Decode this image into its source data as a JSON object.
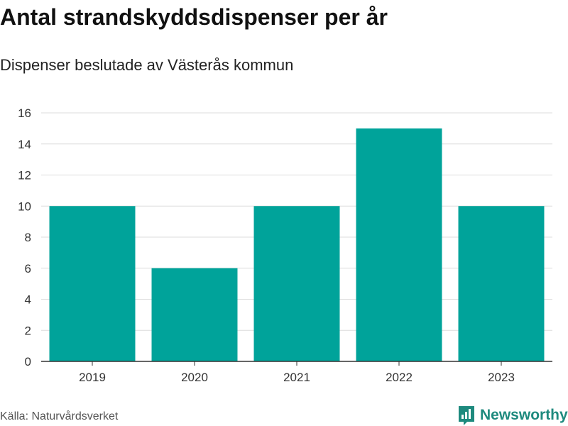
{
  "chart_data": {
    "type": "bar",
    "title": "Antal strandskyddsdispenser per år",
    "subtitle": "Dispenser beslutade av Västerås kommun",
    "categories": [
      "2019",
      "2020",
      "2021",
      "2022",
      "2023"
    ],
    "values": [
      10,
      6,
      10,
      15,
      10
    ],
    "xlabel": "",
    "ylabel": "",
    "ylim": [
      0,
      16
    ],
    "yticks": [
      0,
      2,
      4,
      6,
      8,
      10,
      12,
      14,
      16
    ],
    "grid": true,
    "bar_color": "#00a39a"
  },
  "source": "Källa: Naturvårdsverket",
  "brand": {
    "name": "Newsworthy",
    "color": "#1e8a7e",
    "icon": "newsworthy-logo-icon"
  }
}
